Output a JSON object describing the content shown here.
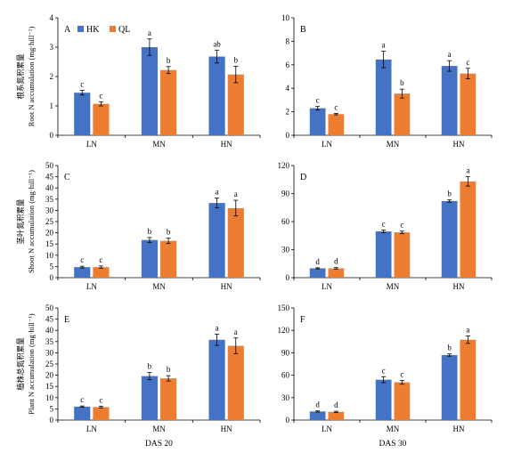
{
  "colors": {
    "HK": "#4472c4",
    "QL": "#ed7d31"
  },
  "legend": [
    {
      "name": "HK",
      "color": "#4472c4"
    },
    {
      "name": "QL",
      "color": "#ed7d31"
    }
  ],
  "row_ylabels": [
    {
      "cn": "根系氮积累量",
      "en": "Root N accumulation (mg·hill⁻¹)"
    },
    {
      "cn": "茎叶氮积累量",
      "en": "Shoot N accumulation (mg·hill⁻¹)"
    },
    {
      "cn": "植株总氮积累量",
      "en": "Plant N accumulation (mg·hill⁻¹)"
    }
  ],
  "column_xlabels": [
    "DAS 20",
    "DAS 30"
  ],
  "chart_data": [
    {
      "type": "bar",
      "panel": "A",
      "categories": [
        "LN",
        "MN",
        "HN"
      ],
      "ylim": [
        0,
        4
      ],
      "yticks": [
        0,
        1,
        2,
        3,
        4
      ],
      "series": [
        {
          "name": "HK",
          "values": [
            1.45,
            3.0,
            2.68
          ],
          "errors": [
            0.08,
            0.28,
            0.22
          ],
          "letters": [
            "c",
            "a",
            "ab"
          ]
        },
        {
          "name": "QL",
          "values": [
            1.07,
            2.22,
            2.07
          ],
          "errors": [
            0.07,
            0.12,
            0.28
          ],
          "letters": [
            "c",
            "b",
            "b"
          ]
        }
      ]
    },
    {
      "type": "bar",
      "panel": "B",
      "categories": [
        "LN",
        "MN",
        "HN"
      ],
      "ylim": [
        0,
        10
      ],
      "yticks": [
        0,
        2,
        4,
        6,
        8,
        10
      ],
      "series": [
        {
          "name": "HK",
          "values": [
            2.3,
            6.45,
            5.9
          ],
          "errors": [
            0.15,
            0.7,
            0.45
          ],
          "letters": [
            "c",
            "a",
            "a"
          ]
        },
        {
          "name": "QL",
          "values": [
            1.8,
            3.55,
            5.25
          ],
          "errors": [
            0.06,
            0.38,
            0.45
          ],
          "letters": [
            "c",
            "b",
            "c"
          ]
        }
      ]
    },
    {
      "type": "bar",
      "panel": "C",
      "categories": [
        "LN",
        "MN",
        "HN"
      ],
      "ylim": [
        0,
        50
      ],
      "yticks": [
        0,
        5,
        10,
        15,
        20,
        25,
        30,
        35,
        40,
        45,
        50
      ],
      "series": [
        {
          "name": "HK",
          "values": [
            4.7,
            16.8,
            33.3
          ],
          "errors": [
            0.4,
            1.1,
            2.2
          ],
          "letters": [
            "c",
            "b",
            "a"
          ]
        },
        {
          "name": "QL",
          "values": [
            4.7,
            16.4,
            31.0
          ],
          "errors": [
            0.5,
            1.2,
            3.5
          ],
          "letters": [
            "c",
            "b",
            "a"
          ]
        }
      ]
    },
    {
      "type": "bar",
      "panel": "D",
      "categories": [
        "LN",
        "MN",
        "HN"
      ],
      "ylim": [
        0,
        120
      ],
      "yticks": [
        0,
        30,
        60,
        90,
        120
      ],
      "series": [
        {
          "name": "HK",
          "values": [
            10.0,
            49.5,
            82.0
          ],
          "errors": [
            0.6,
            1.5,
            1.2
          ],
          "letters": [
            "d",
            "c",
            "b"
          ]
        },
        {
          "name": "QL",
          "values": [
            10.0,
            48.5,
            103.0
          ],
          "errors": [
            0.8,
            1.3,
            5.0
          ],
          "letters": [
            "d",
            "c",
            "a"
          ]
        }
      ]
    },
    {
      "type": "bar",
      "panel": "E",
      "categories": [
        "LN",
        "MN",
        "HN"
      ],
      "ylim": [
        0,
        50
      ],
      "yticks": [
        0,
        5,
        10,
        15,
        20,
        25,
        30,
        35,
        40,
        45,
        50
      ],
      "series": [
        {
          "name": "HK",
          "values": [
            6.0,
            19.6,
            35.8
          ],
          "errors": [
            0.3,
            1.6,
            2.5
          ],
          "letters": [
            "c",
            "b",
            "a"
          ]
        },
        {
          "name": "QL",
          "values": [
            5.8,
            18.6,
            33.1
          ],
          "errors": [
            0.4,
            1.2,
            3.5
          ],
          "letters": [
            "c",
            "b",
            "a"
          ]
        }
      ]
    },
    {
      "type": "bar",
      "panel": "F",
      "categories": [
        "LN",
        "MN",
        "HN"
      ],
      "ylim": [
        0,
        150
      ],
      "yticks": [
        0,
        30,
        60,
        90,
        120,
        150
      ],
      "series": [
        {
          "name": "HK",
          "values": [
            11.5,
            54.0,
            87.0
          ],
          "errors": [
            0.8,
            4.0,
            1.5
          ],
          "letters": [
            "d",
            "c",
            "b"
          ]
        },
        {
          "name": "QL",
          "values": [
            11.0,
            50.5,
            107.5
          ],
          "errors": [
            0.8,
            2.5,
            5.0
          ],
          "letters": [
            "d",
            "c",
            "a"
          ]
        }
      ]
    }
  ]
}
